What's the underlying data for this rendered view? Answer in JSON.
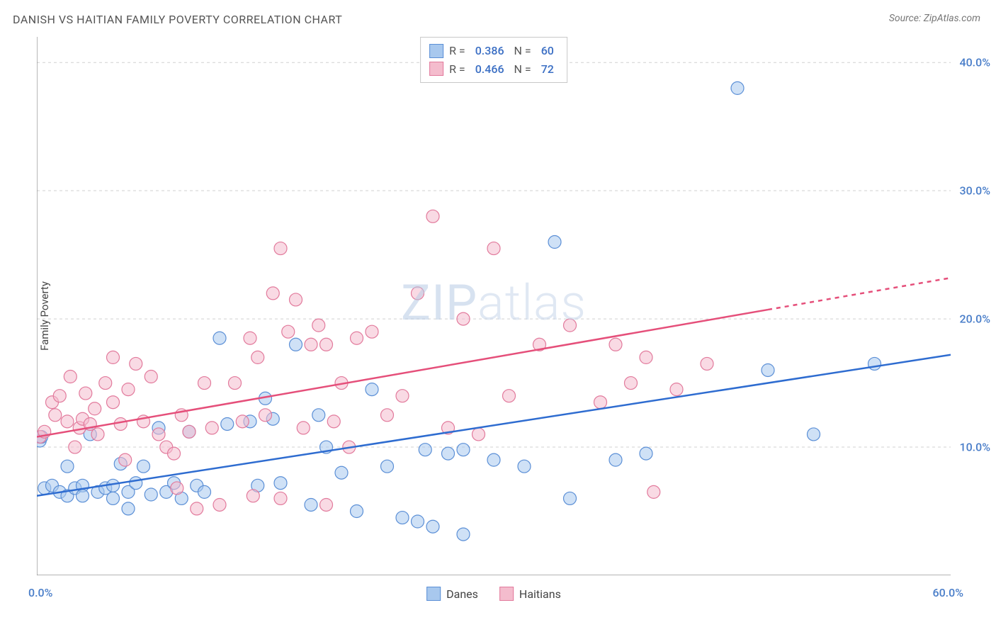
{
  "title": "DANISH VS HAITIAN FAMILY POVERTY CORRELATION CHART",
  "source": "Source: ZipAtlas.com",
  "ylabel": "Family Poverty",
  "watermark_bold": "ZIP",
  "watermark_thin": "atlas",
  "chart": {
    "type": "scatter",
    "background_color": "#ffffff",
    "grid_color": "#d0d0d0",
    "axis_color": "#888888",
    "xlim": [
      0,
      60
    ],
    "ylim": [
      0,
      42
    ],
    "y_gridlines": [
      10,
      20,
      30,
      40
    ],
    "y_tick_labels": [
      "10.0%",
      "20.0%",
      "30.0%",
      "40.0%"
    ],
    "x_ticks": [
      0,
      5,
      10,
      15,
      20,
      25,
      30,
      35,
      40,
      45,
      50,
      55,
      60
    ],
    "x_min_label": "0.0%",
    "x_max_label": "60.0%",
    "label_color": "#4a7ec9",
    "label_fontsize": 16,
    "title_fontsize": 16,
    "marker_radius": 9,
    "marker_opacity": 0.55,
    "line_width": 2.5,
    "series": [
      {
        "name": "Danes",
        "color_fill": "#a8c8ee",
        "color_stroke": "#5b8fd6",
        "line_color": "#2e6cd0",
        "R": "0.386",
        "N": "60",
        "trend": {
          "x1": 0,
          "y1": 6.2,
          "x2": 60,
          "y2": 17.2,
          "dash_from_x": 60
        },
        "points": [
          [
            0.2,
            10.5
          ],
          [
            0.5,
            6.8
          ],
          [
            1,
            7
          ],
          [
            1.5,
            6.5
          ],
          [
            2,
            8.5
          ],
          [
            2,
            6.2
          ],
          [
            2.5,
            6.8
          ],
          [
            3,
            7
          ],
          [
            3,
            6.2
          ],
          [
            3.5,
            11
          ],
          [
            4,
            6.5
          ],
          [
            4.5,
            6.8
          ],
          [
            5,
            7
          ],
          [
            5,
            6
          ],
          [
            5.5,
            8.7
          ],
          [
            6,
            5.2
          ],
          [
            6,
            6.5
          ],
          [
            6.5,
            7.2
          ],
          [
            7,
            8.5
          ],
          [
            7.5,
            6.3
          ],
          [
            8,
            11.5
          ],
          [
            8.5,
            6.5
          ],
          [
            9,
            7.2
          ],
          [
            9.5,
            6
          ],
          [
            10,
            11.2
          ],
          [
            10.5,
            7
          ],
          [
            11,
            6.5
          ],
          [
            12,
            18.5
          ],
          [
            12.5,
            11.8
          ],
          [
            14,
            12
          ],
          [
            14.5,
            7
          ],
          [
            15,
            13.8
          ],
          [
            15.5,
            12.2
          ],
          [
            16,
            7.2
          ],
          [
            17,
            18
          ],
          [
            18,
            5.5
          ],
          [
            18.5,
            12.5
          ],
          [
            19,
            10
          ],
          [
            20,
            8
          ],
          [
            21,
            5
          ],
          [
            22,
            14.5
          ],
          [
            23,
            8.5
          ],
          [
            24,
            4.5
          ],
          [
            25,
            4.2
          ],
          [
            25.5,
            9.8
          ],
          [
            26,
            3.8
          ],
          [
            27,
            9.5
          ],
          [
            28,
            9.8
          ],
          [
            28,
            3.2
          ],
          [
            30,
            9
          ],
          [
            32,
            8.5
          ],
          [
            34,
            26
          ],
          [
            35,
            6
          ],
          [
            38,
            9
          ],
          [
            40,
            9.5
          ],
          [
            46,
            38
          ],
          [
            48,
            16
          ],
          [
            51,
            11
          ],
          [
            55,
            16.5
          ],
          [
            0.3,
            10.8
          ]
        ]
      },
      {
        "name": "Haitians",
        "color_fill": "#f4bccd",
        "color_stroke": "#e27a9c",
        "line_color": "#e54f7a",
        "R": "0.466",
        "N": "72",
        "trend": {
          "x1": 0,
          "y1": 10.8,
          "x2": 60,
          "y2": 23.2,
          "dash_from_x": 48
        },
        "points": [
          [
            0.2,
            10.8
          ],
          [
            0.5,
            11.2
          ],
          [
            1,
            13.5
          ],
          [
            1.2,
            12.5
          ],
          [
            1.5,
            14
          ],
          [
            2,
            12
          ],
          [
            2.2,
            15.5
          ],
          [
            2.5,
            10
          ],
          [
            2.8,
            11.5
          ],
          [
            3,
            12.2
          ],
          [
            3.2,
            14.2
          ],
          [
            3.5,
            11.8
          ],
          [
            3.8,
            13
          ],
          [
            4,
            11
          ],
          [
            4.5,
            15
          ],
          [
            5,
            13.5
          ],
          [
            5,
            17
          ],
          [
            5.5,
            11.8
          ],
          [
            5.8,
            9
          ],
          [
            6,
            14.5
          ],
          [
            6.5,
            16.5
          ],
          [
            7,
            12
          ],
          [
            7.5,
            15.5
          ],
          [
            8,
            11
          ],
          [
            8.5,
            10
          ],
          [
            9,
            9.5
          ],
          [
            9.5,
            12.5
          ],
          [
            10,
            11.2
          ],
          [
            10.5,
            5.2
          ],
          [
            11,
            15
          ],
          [
            11.5,
            11.5
          ],
          [
            12,
            5.5
          ],
          [
            13,
            15
          ],
          [
            13.5,
            12
          ],
          [
            14,
            18.5
          ],
          [
            14.5,
            17
          ],
          [
            15,
            12.5
          ],
          [
            15.5,
            22
          ],
          [
            16,
            25.5
          ],
          [
            16.5,
            19
          ],
          [
            17,
            21.5
          ],
          [
            17.5,
            11.5
          ],
          [
            18,
            18
          ],
          [
            18.5,
            19.5
          ],
          [
            19,
            18
          ],
          [
            19.5,
            12
          ],
          [
            20,
            15
          ],
          [
            20.5,
            10
          ],
          [
            21,
            18.5
          ],
          [
            22,
            19
          ],
          [
            23,
            12.5
          ],
          [
            24,
            14
          ],
          [
            25,
            22
          ],
          [
            26,
            28
          ],
          [
            27,
            11.5
          ],
          [
            28,
            20
          ],
          [
            29,
            11
          ],
          [
            30,
            25.5
          ],
          [
            31,
            14
          ],
          [
            33,
            18
          ],
          [
            35,
            19.5
          ],
          [
            37,
            13.5
          ],
          [
            38,
            18
          ],
          [
            39,
            15
          ],
          [
            40,
            17
          ],
          [
            40.5,
            6.5
          ],
          [
            42,
            14.5
          ],
          [
            44,
            16.5
          ],
          [
            14.2,
            6.2
          ],
          [
            16,
            6
          ],
          [
            19,
            5.5
          ],
          [
            9.2,
            6.8
          ]
        ]
      }
    ],
    "bottom_legend": [
      "Danes",
      "Haitians"
    ]
  }
}
